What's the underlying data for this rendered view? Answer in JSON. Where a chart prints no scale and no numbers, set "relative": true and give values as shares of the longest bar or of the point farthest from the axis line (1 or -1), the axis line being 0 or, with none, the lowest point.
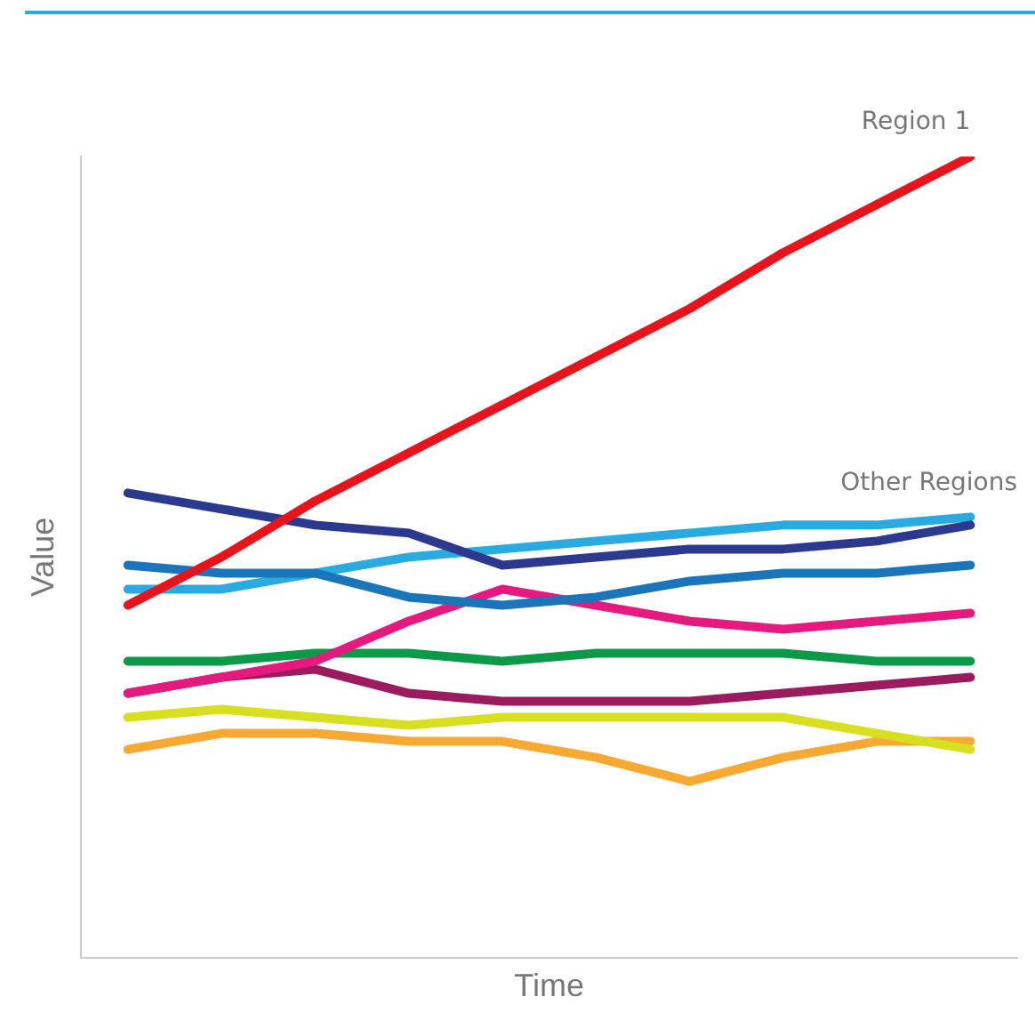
{
  "chart_data": {
    "type": "line",
    "xlabel": "Time",
    "ylabel": "Value",
    "relative": true,
    "legend": false,
    "grid": false,
    "marker": "none",
    "line_style": "solid",
    "categories": [
      null,
      null,
      null,
      null,
      null,
      null,
      null,
      null,
      null,
      null
    ],
    "annotations": [
      "Other Regions"
    ],
    "series": [
      {
        "name": "Region 1",
        "color": "#e8141c",
        "values": [
          0.44,
          0.5,
          0.57,
          0.63,
          0.69,
          0.75,
          0.81,
          0.88,
          0.94,
          1
        ]
      },
      {
        "color": "#2b3a8f",
        "values": [
          0.58,
          0.56,
          0.54,
          0.53,
          0.49,
          0.5,
          0.51,
          0.51,
          0.52,
          0.54
        ]
      },
      {
        "color": "#1b75bb",
        "values": [
          0.49,
          0.48,
          0.48,
          0.45,
          0.44,
          0.45,
          0.47,
          0.48,
          0.48,
          0.49
        ]
      },
      {
        "color": "#29aae1",
        "values": [
          0.46,
          0.46,
          0.48,
          0.5,
          0.51,
          0.52,
          0.53,
          0.54,
          0.54,
          0.55
        ]
      },
      {
        "color": "#e6197f",
        "values": [
          0.33,
          0.35,
          0.37,
          0.42,
          0.46,
          0.44,
          0.42,
          0.41,
          0.42,
          0.43
        ]
      },
      {
        "color": "#0d9a48",
        "values": [
          0.37,
          0.37,
          0.38,
          0.38,
          0.37,
          0.38,
          0.38,
          0.38,
          0.37,
          0.37
        ]
      },
      {
        "color": "#9b1b5f",
        "values": [
          0.33,
          0.35,
          0.36,
          0.33,
          0.32,
          0.32,
          0.32,
          0.33,
          0.34,
          0.35
        ]
      },
      {
        "color": "#d8df1e",
        "values": [
          0.3,
          0.31,
          0.3,
          0.29,
          0.3,
          0.3,
          0.3,
          0.3,
          0.28,
          0.26
        ]
      },
      {
        "color": "#f7a933",
        "values": [
          0.26,
          0.28,
          0.28,
          0.27,
          0.27,
          0.25,
          0.22,
          0.25,
          0.27,
          0.27
        ]
      }
    ]
  }
}
